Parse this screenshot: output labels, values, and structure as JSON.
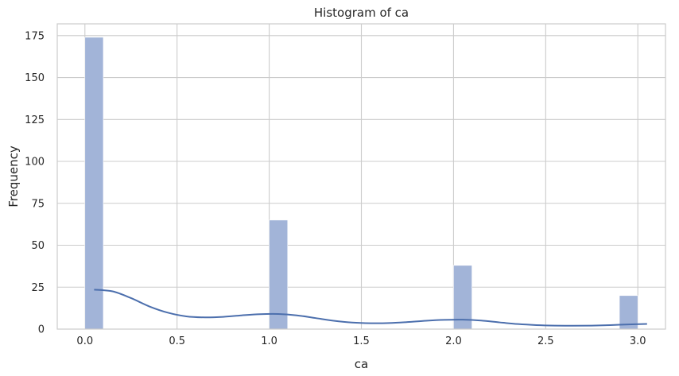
{
  "chart_data": {
    "type": "bar",
    "title": "Histogram of ca",
    "xlabel": "ca",
    "ylabel": "Frequency",
    "xlim": [
      -0.15,
      3.15
    ],
    "ylim": [
      0,
      182
    ],
    "x_ticks": [
      "0.0",
      "0.5",
      "1.0",
      "1.5",
      "2.0",
      "2.5",
      "3.0"
    ],
    "y_ticks": [
      "0",
      "25",
      "50",
      "75",
      "100",
      "125",
      "150",
      "175"
    ],
    "grid": true,
    "bin_width": 0.1,
    "bars": [
      {
        "x_start": 0.0,
        "x_end": 0.1,
        "value": 174
      },
      {
        "x_start": 1.0,
        "x_end": 1.1,
        "value": 65
      },
      {
        "x_start": 2.0,
        "x_end": 2.1,
        "value": 38
      },
      {
        "x_start": 2.9,
        "x_end": 3.0,
        "value": 20
      }
    ],
    "kde": {
      "x": [
        0.0,
        0.1,
        0.2,
        0.3,
        0.4,
        0.5,
        0.6,
        0.7,
        0.8,
        0.9,
        1.0,
        1.1,
        1.2,
        1.3,
        1.4,
        1.5,
        1.6,
        1.7,
        1.8,
        1.9,
        2.0,
        2.1,
        2.2,
        2.3,
        2.4,
        2.5,
        2.6,
        2.7,
        2.8,
        2.9,
        3.0
      ],
      "y": [
        23.5,
        22.5,
        18.5,
        13.5,
        9.8,
        7.6,
        7.0,
        7.3,
        8.2,
        8.9,
        9.0,
        8.2,
        6.6,
        5.0,
        3.9,
        3.5,
        3.6,
        4.2,
        5.0,
        5.5,
        5.6,
        5.1,
        4.0,
        3.0,
        2.4,
        2.1,
        2.0,
        2.1,
        2.4,
        2.8,
        3.1
      ]
    },
    "colors": {
      "bar_fill": "#a2b4d8",
      "bar_edge": "#ffffff",
      "kde_line": "#4c6fad",
      "grid": "#cccccc",
      "axes_edge": "#cccccc",
      "text": "#262626"
    }
  }
}
